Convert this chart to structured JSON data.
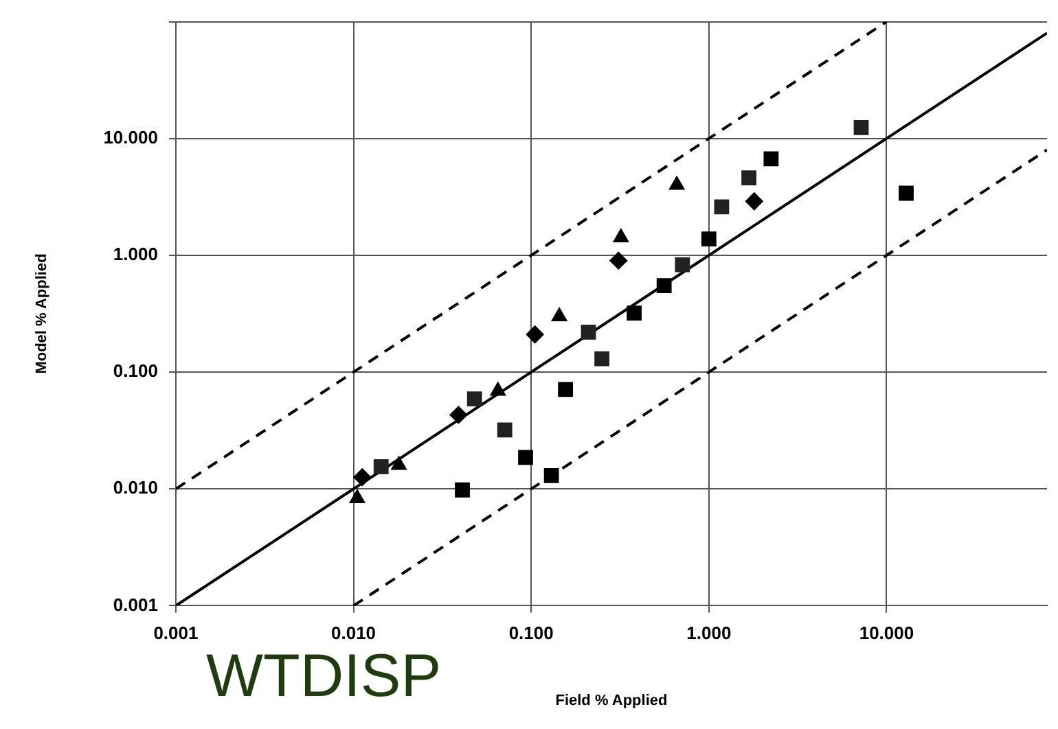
{
  "chart_data": {
    "type": "scatter",
    "xlabel": "Field % Applied",
    "ylabel": "Model % Applied",
    "log": "xy",
    "grid": true,
    "legend": false,
    "xlim": [
      0.001,
      80
    ],
    "ylim": [
      0.001,
      100
    ],
    "xticks": [
      {
        "value": 0.001,
        "label": "0.001"
      },
      {
        "value": 0.01,
        "label": "0.010"
      },
      {
        "value": 0.1,
        "label": "0.100"
      },
      {
        "value": 1,
        "label": "1.000"
      },
      {
        "value": 10,
        "label": "10.000"
      }
    ],
    "yticks": [
      {
        "value": 0.001,
        "label": "0.001"
      },
      {
        "value": 0.01,
        "label": "0.010"
      },
      {
        "value": 0.1,
        "label": "0.100"
      },
      {
        "value": 1,
        "label": "1.000"
      },
      {
        "value": 10,
        "label": "10.000"
      },
      {
        "value": 100,
        "label": null
      }
    ],
    "annotations": [
      "WTDISP"
    ],
    "series": [
      {
        "type": "line",
        "color": "#000000",
        "marker": "none",
        "line_style": "solid",
        "x": [
          0.001,
          80
        ],
        "values": [
          0.001,
          80
        ]
      },
      {
        "type": "line",
        "color": "#000000",
        "marker": "none",
        "line_style": "dashed",
        "x": [
          0.001,
          10
        ],
        "values": [
          0.01,
          100
        ]
      },
      {
        "type": "line",
        "color": "#000000",
        "marker": "none",
        "line_style": "dashed",
        "x": [
          0.01,
          80
        ],
        "values": [
          0.001,
          8
        ]
      },
      {
        "color": "#000000",
        "marker": "triangle",
        "x": [
          0.0105,
          0.018,
          0.065,
          0.144,
          0.32,
          0.66
        ],
        "values": [
          0.0083,
          0.016,
          0.069,
          0.3,
          1.42,
          4.0
        ]
      },
      {
        "color": "#000000",
        "marker": "diamond",
        "x": [
          0.0112,
          0.039,
          0.105,
          0.31,
          1.8
        ],
        "values": [
          0.0126,
          0.043,
          0.21,
          0.9,
          2.9
        ]
      },
      {
        "color": "#000000",
        "marker": "square",
        "x": [
          0.041,
          0.093,
          0.13,
          0.156,
          0.38,
          0.56,
          1.0,
          2.24,
          12.9
        ],
        "values": [
          0.0098,
          0.0186,
          0.013,
          0.071,
          0.32,
          0.55,
          1.38,
          6.7,
          3.4
        ]
      },
      {
        "color": "#222222",
        "marker": "square",
        "x": [
          0.0143,
          0.048,
          0.071,
          0.21,
          0.25,
          0.71,
          1.18,
          1.68,
          7.2
        ],
        "values": [
          0.0155,
          0.059,
          0.032,
          0.22,
          0.13,
          0.83,
          2.6,
          4.6,
          12.4
        ]
      }
    ]
  }
}
